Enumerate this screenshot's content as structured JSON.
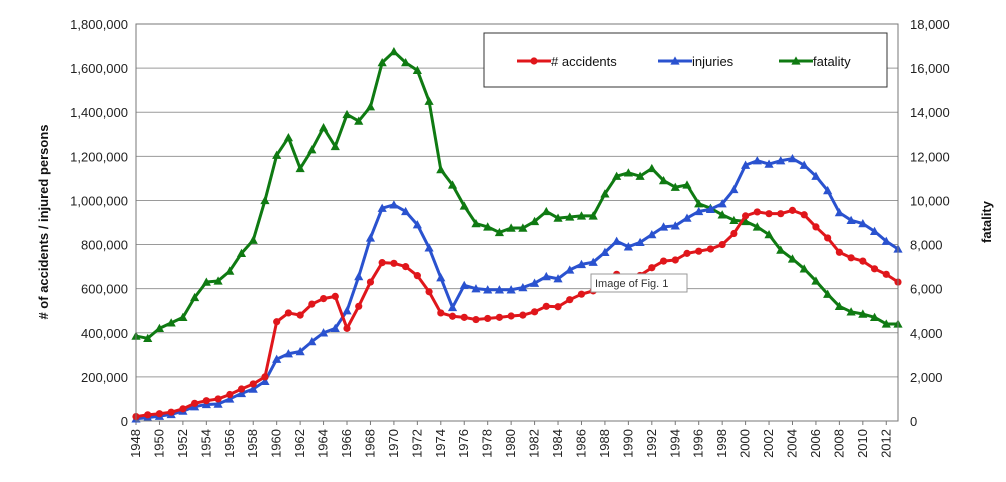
{
  "chart_data": {
    "type": "line",
    "title": "",
    "xlabel": "",
    "ylabel": "# of accidents / injured persons",
    "y2label": "fatality",
    "x": [
      1948,
      1949,
      1950,
      1951,
      1952,
      1953,
      1954,
      1955,
      1956,
      1957,
      1958,
      1959,
      1960,
      1961,
      1962,
      1963,
      1964,
      1965,
      1966,
      1967,
      1968,
      1969,
      1970,
      1971,
      1972,
      1973,
      1974,
      1975,
      1976,
      1977,
      1978,
      1979,
      1980,
      1981,
      1982,
      1983,
      1984,
      1985,
      1986,
      1987,
      1988,
      1989,
      1990,
      1991,
      1992,
      1993,
      1994,
      1995,
      1996,
      1997,
      1998,
      1999,
      2000,
      2001,
      2002,
      2003,
      2004,
      2005,
      2006,
      2007,
      2008,
      2009,
      2010,
      2011,
      2012,
      2013
    ],
    "x_tick_labels": [
      "1948",
      "1950",
      "1952",
      "1954",
      "1956",
      "1958",
      "1960",
      "1962",
      "1964",
      "1966",
      "1968",
      "1970",
      "1972",
      "1974",
      "1976",
      "1978",
      "1980",
      "1982",
      "1984",
      "1986",
      "1988",
      "1990",
      "1992",
      "1994",
      "1996",
      "1998",
      "2000",
      "2002",
      "2004",
      "2006",
      "2008",
      "2010",
      "2012"
    ],
    "ylim": [
      0,
      1800000
    ],
    "y_ticks": [
      "0",
      "200,000",
      "400,000",
      "600,000",
      "800,000",
      "1,000,000",
      "1,200,000",
      "1,400,000",
      "1,600,000",
      "1,800,000"
    ],
    "y2lim": [
      0,
      18000
    ],
    "y2_ticks": [
      "0",
      "2,000",
      "4,000",
      "6,000",
      "8,000",
      "10,000",
      "12,000",
      "14,000",
      "16,000",
      "18,000"
    ],
    "grid": "horizontal",
    "legend_position": "top-right",
    "series": [
      {
        "name": "# accidents",
        "axis": "left",
        "color": "#e0161b",
        "marker": "circle",
        "values": [
          20000,
          28000,
          33000,
          40000,
          55000,
          80000,
          92000,
          100000,
          120000,
          145000,
          168000,
          200000,
          450000,
          490000,
          480000,
          530000,
          555000,
          565000,
          420000,
          520000,
          630000,
          718000,
          715000,
          700000,
          659000,
          586000,
          490000,
          475000,
          470000,
          460000,
          465000,
          470000,
          476000,
          480000,
          495000,
          520000,
          518000,
          550000,
          575000,
          590000,
          614000,
          665000,
          645000,
          660000,
          695000,
          725000,
          730000,
          760000,
          770000,
          780000,
          800000,
          850000,
          930000,
          948000,
          940000,
          940000,
          955000,
          935000,
          880000,
          830000,
          765000,
          740000,
          725000,
          690000,
          665000,
          630000
        ]
      },
      {
        "name": "injuries",
        "axis": "left",
        "color": "#2a52cf",
        "marker": "triangle",
        "values": [
          10000,
          15000,
          22000,
          30000,
          45000,
          65000,
          75000,
          77000,
          100000,
          125000,
          145000,
          180000,
          280000,
          305000,
          315000,
          360000,
          400000,
          420000,
          500000,
          655000,
          830000,
          965000,
          980000,
          950000,
          890000,
          785000,
          650000,
          515000,
          615000,
          600000,
          595000,
          595000,
          595000,
          605000,
          625000,
          655000,
          645000,
          685000,
          710000,
          720000,
          765000,
          815000,
          790000,
          810000,
          845000,
          880000,
          885000,
          920000,
          950000,
          960000,
          985000,
          1050000,
          1160000,
          1180000,
          1165000,
          1180000,
          1190000,
          1160000,
          1110000,
          1045000,
          945000,
          910000,
          895000,
          860000,
          815000,
          780000
        ]
      },
      {
        "name": "fatality",
        "axis": "right",
        "color": "#0f7a12",
        "marker": "triangle",
        "values": [
          3850,
          3750,
          4200,
          4450,
          4700,
          5600,
          6300,
          6350,
          6800,
          7600,
          8200,
          10000,
          12050,
          12850,
          11450,
          12300,
          13300,
          12450,
          13900,
          13600,
          14250,
          16250,
          16750,
          16250,
          15900,
          14500,
          11400,
          10700,
          9750,
          8950,
          8800,
          8550,
          8750,
          8750,
          9050,
          9500,
          9200,
          9250,
          9300,
          9300,
          10300,
          11100,
          11250,
          11100,
          11450,
          10900,
          10600,
          10700,
          9850,
          9650,
          9350,
          9100,
          9050,
          8800,
          8450,
          7750,
          7350,
          6900,
          6350,
          5750,
          5200,
          4950,
          4850,
          4700,
          4400,
          4400
        ]
      }
    ]
  },
  "tooltip": {
    "text": "Image of Fig. 1"
  }
}
